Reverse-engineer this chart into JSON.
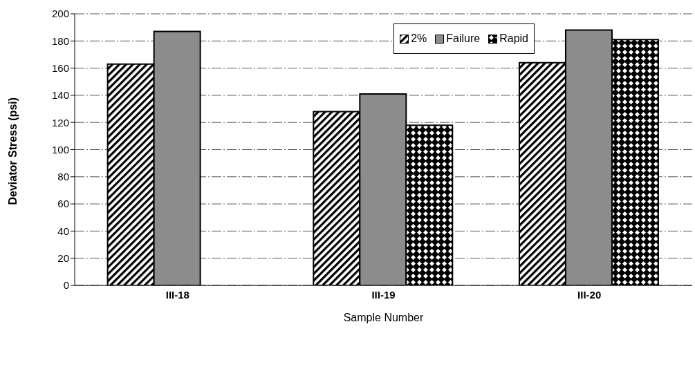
{
  "chart_data": {
    "type": "bar",
    "xlabel": "Sample Number",
    "ylabel": "Deviator Stress (psi)",
    "categories": [
      "III-18",
      "III-19",
      "III-20"
    ],
    "series": [
      {
        "name": "2%",
        "color": "#000000",
        "values": [
          163,
          128,
          164
        ]
      },
      {
        "name": "Failure",
        "color": "#8c8c8c",
        "values": [
          187,
          141,
          188
        ]
      },
      {
        "name": "Rapid",
        "color": "#000000",
        "values": [
          null,
          118,
          181
        ]
      }
    ],
    "ylim": [
      0,
      200
    ],
    "yticks": [
      0,
      20,
      40,
      60,
      80,
      100,
      120,
      140,
      160,
      180,
      200
    ],
    "grid": "y",
    "legend": "top right"
  }
}
